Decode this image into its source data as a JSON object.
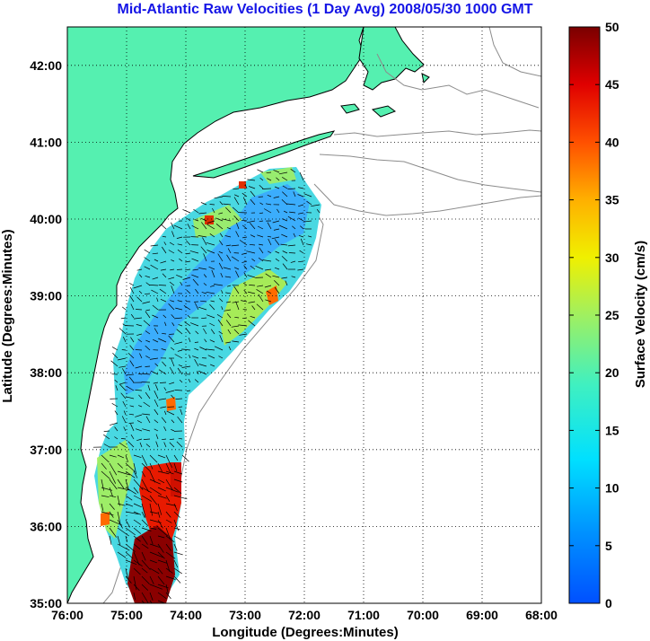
{
  "title": "Mid-Atlantic Raw Velocities (1 Day Avg) 2008/05/30 1000 GMT",
  "map": {
    "x_label": "Longitude (Degrees:Minutes)",
    "y_label": "Latitude (Degrees:Minutes)",
    "lon_ticks": [
      "76:00",
      "75:00",
      "74:00",
      "73:00",
      "72:00",
      "71:00",
      "70:00",
      "69:00",
      "68:00"
    ],
    "lat_ticks": [
      "42:00",
      "41:00",
      "40:00",
      "39:00",
      "38:00",
      "37:00",
      "36:00",
      "35:00"
    ],
    "lon_range_deg_west": [
      76,
      68
    ],
    "lat_range_deg_north": [
      35,
      42.5
    ],
    "grid": "dotted",
    "land_color": "#55f0b0",
    "coastline_color": "#000000",
    "bathymetry_color": "#8c8c8c"
  },
  "colorbar": {
    "label": "Surface Velocity (cm/s)",
    "ticks": [
      "0",
      "5",
      "10",
      "15",
      "20",
      "25",
      "30",
      "35",
      "40",
      "45",
      "50"
    ],
    "range": [
      0,
      50
    ],
    "colormap": "jet"
  },
  "colors": {
    "title": "#1515e6",
    "text": "#000000"
  }
}
